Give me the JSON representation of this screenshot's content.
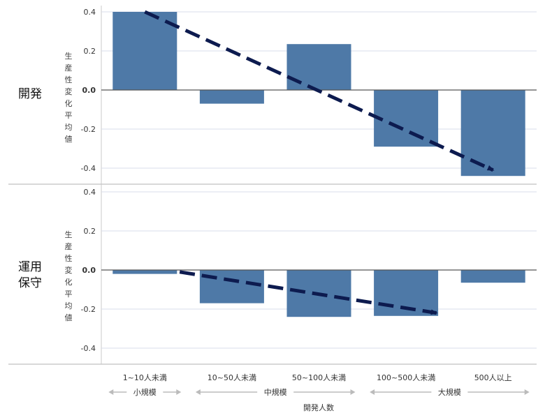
{
  "chart_data": {
    "type": "bar",
    "xlabel": "開発人数",
    "categories": [
      "1~10人未満",
      "10~50人未満",
      "50~100人未満",
      "100~500人未満",
      "500人以上"
    ],
    "groups": [
      {
        "name": "小規模",
        "span": [
          0,
          0
        ]
      },
      {
        "name": "中規模",
        "span": [
          1,
          2
        ]
      },
      {
        "name": "大規模",
        "span": [
          3,
          4
        ]
      }
    ],
    "panels": [
      {
        "name": "開発",
        "ylabel": "生産性変化平均値",
        "ylim": [
          -0.45,
          0.4
        ],
        "ticks": [
          0.4,
          0.2,
          0.0,
          -0.2,
          -0.4
        ],
        "tick_labels": [
          "0.4",
          "0.2",
          "0.0",
          "-0.2",
          "-0.4"
        ],
        "values": [
          0.4,
          -0.07,
          0.235,
          -0.29,
          -0.44
        ],
        "trend": {
          "from": [
            0,
            0.4
          ],
          "to": [
            4,
            -0.41
          ]
        }
      },
      {
        "name": "運用保守",
        "ylabel": "生産性変化平均値",
        "ylim": [
          -0.45,
          0.4
        ],
        "ticks": [
          0.4,
          0.2,
          0.0,
          -0.2,
          -0.4
        ],
        "tick_labels": [
          "0.4",
          "0.2",
          "0.0",
          "-0.2",
          "-0.4"
        ],
        "values": [
          -0.02,
          -0.17,
          -0.24,
          -0.235,
          -0.065
        ],
        "trend": {
          "from": [
            0.4,
            -0.01
          ],
          "to": [
            3.35,
            -0.22
          ]
        }
      }
    ],
    "colors": {
      "bar": "#4E79A7",
      "trend": "#0D1B4F",
      "grid": "#D9DCEB",
      "axis": "#555555"
    }
  }
}
